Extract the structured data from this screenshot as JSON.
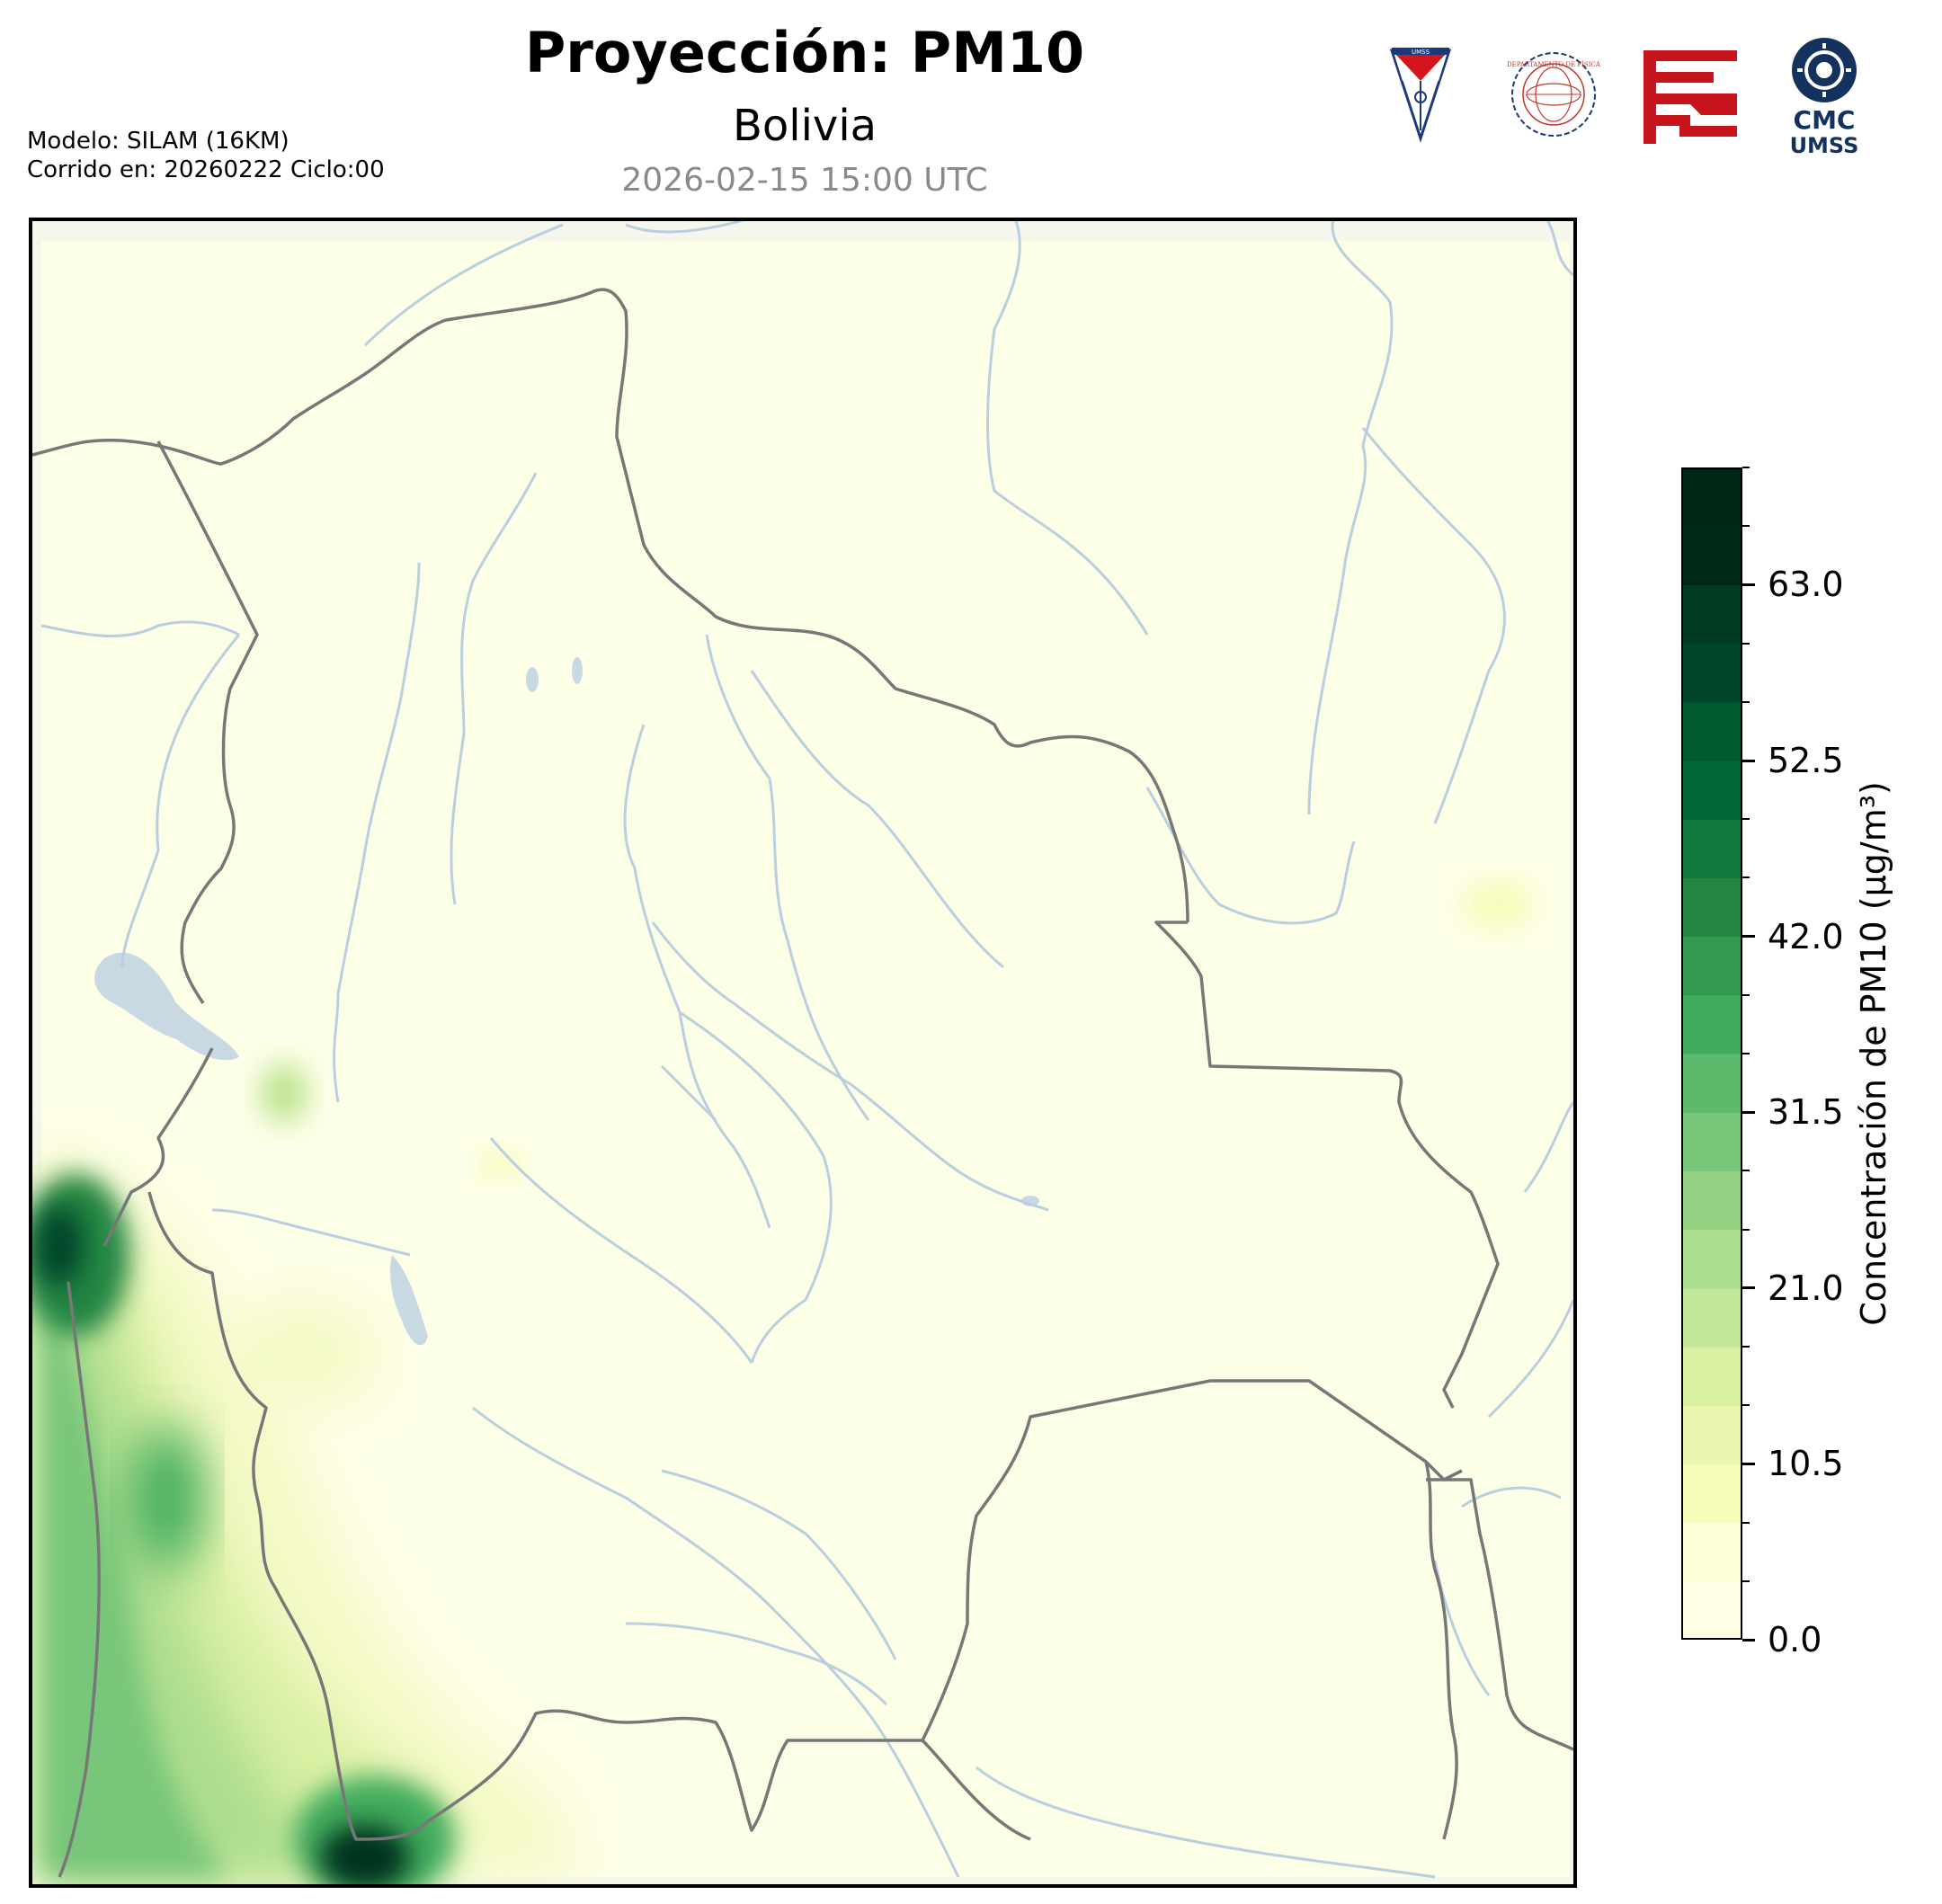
{
  "header": {
    "title": "Proyección: PM10",
    "subtitle": "Bolivia",
    "datetime": "2026-02-15 15:00 UTC",
    "model_line": "Modelo: SILAM (16KM)",
    "run_line": "Corrido en: 20260222 Ciclo:00"
  },
  "logos": {
    "umss_shield": "UMSS",
    "fisica_seal": "DEPARTAMENTO DE FÍSICA",
    "cmc_line1": "CMC",
    "cmc_line2": "UMSS"
  },
  "colorbar": {
    "label": "Concentración de PM10 (µg/m³)",
    "min": 0.0,
    "max": 70.0,
    "ticks": [
      "0.0",
      "10.5",
      "21.0",
      "31.5",
      "42.0",
      "52.5",
      "63.0"
    ],
    "tick_values": [
      0.0,
      10.5,
      21.0,
      31.5,
      42.0,
      52.5,
      63.0
    ],
    "colors": [
      "#ffffe5",
      "#fbfed6",
      "#f7fcb9",
      "#e9f6b0",
      "#d9f0a3",
      "#c2e699",
      "#addd8e",
      "#95d284",
      "#78c679",
      "#5db96b",
      "#41ab5d",
      "#319a4f",
      "#238443",
      "#137a3d",
      "#006837",
      "#005a30",
      "#004529",
      "#003b23",
      "#002a18",
      "#002616"
    ]
  },
  "colors": {
    "background_field": "#fdfee6",
    "border_line": "#777777",
    "river": "#b9cfdf",
    "lake": "#c8d9e4"
  }
}
